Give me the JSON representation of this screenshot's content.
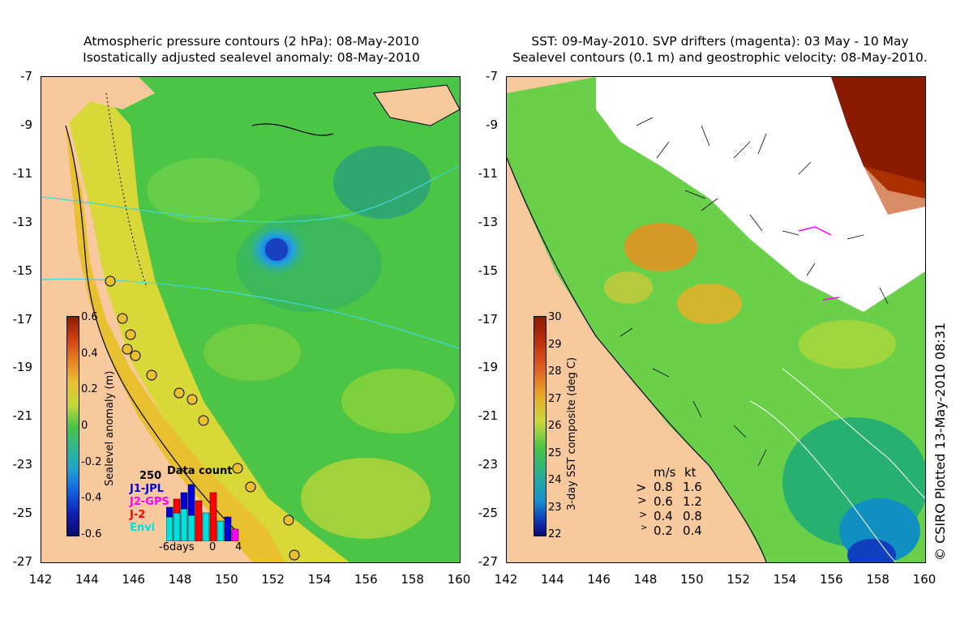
{
  "left_panel": {
    "title_line1": "Atmospheric pressure contours (2 hPa): 08-May-2010",
    "title_line2": "Isostatically adjusted sealevel anomaly: 08-May-2010",
    "colorbar": {
      "title": "Sealevel anomaly (m)",
      "ticks": [
        "0.6",
        "0.4",
        "0.2",
        "0",
        "-0.2",
        "-0.4",
        "-0.6"
      ],
      "range": [
        -0.6,
        0.6
      ]
    },
    "data_count": {
      "title": "Data count",
      "max_label": "250",
      "satellites": [
        {
          "name": "J1-JPL",
          "color": "#0000dd"
        },
        {
          "name": "J2-GPS",
          "color": "#ff00ff"
        },
        {
          "name": "J-2",
          "color": "#ff0000"
        },
        {
          "name": "Envi",
          "color": "#00e0e0"
        }
      ],
      "x_labels": [
        "-6days",
        "0",
        "4"
      ]
    }
  },
  "right_panel": {
    "title_line1": "SST: 09-May-2010. SVP drifters (magenta): 03 May - 10 May",
    "title_line2": "Sealevel contours (0.1 m) and geostrophic velocity: 08-May-2010.",
    "colorbar": {
      "title": "3-day SST composite (deg C)",
      "ticks": [
        "30",
        "29",
        "28",
        "27",
        "26",
        "25",
        "24",
        "23",
        "22"
      ],
      "range": [
        22,
        30
      ]
    },
    "velocity_legend": {
      "header_ms": "m/s",
      "header_kt": "kt",
      "rows": [
        {
          "ms": "0.8",
          "kt": "1.6"
        },
        {
          "ms": "0.6",
          "kt": "1.2"
        },
        {
          "ms": "0.4",
          "kt": "0.8"
        },
        {
          "ms": "0.2",
          "kt": "0.4"
        }
      ]
    }
  },
  "axes": {
    "lat_ticks": [
      "-7",
      "-9",
      "-11",
      "-13",
      "-15",
      "-17",
      "-19",
      "-21",
      "-23",
      "-25",
      "-27"
    ],
    "lon_ticks": [
      "142",
      "144",
      "146",
      "148",
      "150",
      "152",
      "154",
      "156",
      "158",
      "160"
    ]
  },
  "credit": "© CSIRO Plotted 13-May-2010 08:31"
}
